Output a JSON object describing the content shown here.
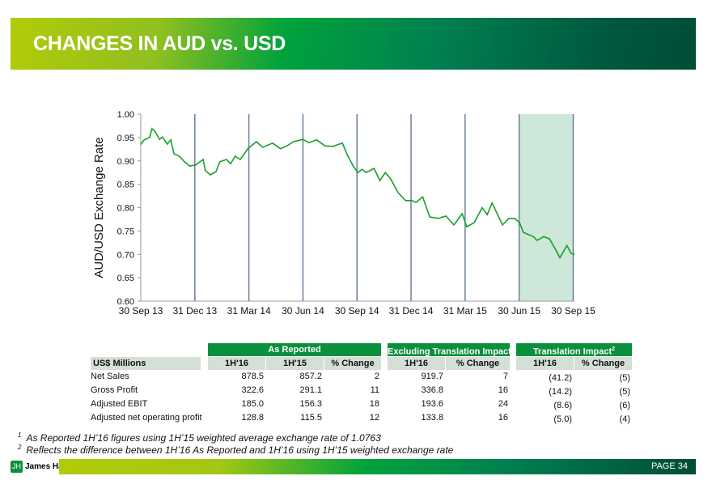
{
  "header": {
    "title": "CHANGES IN AUD vs. USD"
  },
  "chart_data": {
    "type": "line",
    "title": "",
    "ylabel": "AUD/USD Exchange Rate",
    "xlabel": "",
    "x_unit": "weeks since 30 Sep 13",
    "xlim": [
      0,
      104.3
    ],
    "ylim": [
      0.6,
      1.0
    ],
    "yticks": [
      0.6,
      0.65,
      0.7,
      0.75,
      0.8,
      0.85,
      0.9,
      0.95,
      1.0
    ],
    "ytick_labels": [
      "0.60",
      "0.65",
      "0.70",
      "0.75",
      "0.80",
      "0.85",
      "0.90",
      "0.95",
      "1.00"
    ],
    "xticks": [
      0,
      13,
      26,
      39,
      52,
      65,
      78,
      91,
      104
    ],
    "xtick_labels": [
      "30 Sep 13",
      "31 Dec 13",
      "31 Mar 14",
      "30 Jun 14",
      "30 Sep 14",
      "31 Dec 14",
      "31 Mar 15",
      "30 Jun 15",
      "30 Sep 15"
    ],
    "shaded_range": [
      91,
      104
    ],
    "line_color": "#1a9e2a",
    "shade_color": "#cde8d8",
    "series": [
      {
        "name": "AUD/USD",
        "x": [
          0,
          0.8,
          2.1,
          2.7,
          3.5,
          4.5,
          5.2,
          6.4,
          7.2,
          8,
          9.3,
          10.5,
          11.8,
          13.2,
          15,
          15.5,
          16.7,
          18.1,
          19,
          20.6,
          21.6,
          22.7,
          23.9,
          24.9,
          25.8,
          27.8,
          29.3,
          31.7,
          33.6,
          35.1,
          36.7,
          39,
          40.4,
          42.3,
          44.3,
          46.2,
          48.5,
          49.7,
          51.1,
          52.2,
          53.2,
          54.2,
          56.1,
          57.5,
          58.8,
          60,
          61.9,
          63.7,
          65.2,
          66.2,
          67.8,
          69.5,
          71.5,
          73.4,
          75.3,
          77.3,
          78.4,
          80.2,
          82.1,
          83.3,
          84.5,
          87,
          88.5,
          89.9,
          91.1,
          92,
          94.4,
          95.3,
          96.9,
          98.3,
          99.6,
          100.8,
          102.5,
          103.5,
          104.3
        ],
        "y": [
          0.935,
          0.945,
          0.95,
          0.969,
          0.962,
          0.946,
          0.951,
          0.936,
          0.945,
          0.915,
          0.91,
          0.898,
          0.889,
          0.891,
          0.903,
          0.88,
          0.87,
          0.877,
          0.898,
          0.903,
          0.894,
          0.91,
          0.903,
          0.915,
          0.927,
          0.941,
          0.929,
          0.938,
          0.926,
          0.932,
          0.941,
          0.946,
          0.939,
          0.945,
          0.932,
          0.931,
          0.938,
          0.912,
          0.889,
          0.875,
          0.882,
          0.875,
          0.884,
          0.858,
          0.875,
          0.863,
          0.832,
          0.815,
          0.815,
          0.811,
          0.823,
          0.78,
          0.777,
          0.782,
          0.763,
          0.787,
          0.759,
          0.768,
          0.8,
          0.785,
          0.81,
          0.763,
          0.777,
          0.777,
          0.768,
          0.747,
          0.738,
          0.73,
          0.738,
          0.733,
          0.713,
          0.693,
          0.719,
          0.702,
          0.7
        ]
      }
    ]
  },
  "table": {
    "groups": [
      "As Reported",
      "Excluding Translation Impact",
      "Translation Impact"
    ],
    "group_sups": [
      "",
      "1",
      "2"
    ],
    "row_header": "US$ Millions",
    "subheaders": [
      "1H'16",
      "1H'15",
      "% Change",
      "1H'16",
      "% Change",
      "1H'16",
      "% Change"
    ],
    "rows": [
      {
        "label": "Net Sales",
        "cells": [
          "878.5",
          "857.2",
          "2",
          "919.7",
          "7",
          "(41.2)",
          "(5)"
        ]
      },
      {
        "label": "Gross Profit",
        "cells": [
          "322.6",
          "291.1",
          "11",
          "336.8",
          "16",
          "(14.2)",
          "(5)"
        ]
      },
      {
        "label": "Adjusted EBIT",
        "cells": [
          "185.0",
          "156.3",
          "18",
          "193.6",
          "24",
          "(8.6)",
          "(6)"
        ]
      },
      {
        "label": "Adjusted net operating profit",
        "cells": [
          "128.8",
          "115.5",
          "12",
          "133.8",
          "16",
          "(5.0)",
          "(4)"
        ]
      }
    ]
  },
  "footnotes": [
    {
      "num": "1",
      "text": "As Reported 1H’16 figures using 1H’15 weighted average exchange rate of 1.0763"
    },
    {
      "num": "2",
      "text": "Reflects the difference between 1H’16 As Reported and 1H’16 using 1H’15 weighted exchange rate"
    }
  ],
  "footer": {
    "logo_text": "James Hardie",
    "page": "PAGE  34"
  }
}
